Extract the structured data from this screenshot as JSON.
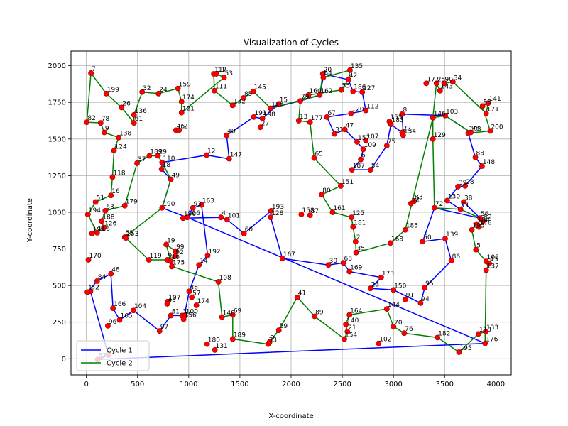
{
  "chart_data": {
    "type": "line",
    "title": "Visualization of Cycles",
    "xlabel": "X-coordinate",
    "ylabel": "Y-coordinate",
    "xlim": [
      -150,
      4150
    ],
    "ylim": [
      -110,
      2100
    ],
    "xticks": [
      0,
      500,
      1000,
      1500,
      2000,
      2500,
      3000,
      3500,
      4000
    ],
    "yticks": [
      0,
      250,
      500,
      750,
      1000,
      1250,
      1500,
      1750,
      2000
    ],
    "grid": true,
    "legend_position": "lower-left",
    "colors": {
      "cycle1": "#0000ff",
      "cycle2": "#008000",
      "point_fill": "#ff0000",
      "point_edge": "#8b0000"
    },
    "points": [
      {
        "id": "7",
        "x": 45,
        "y": 1950
      },
      {
        "id": "199",
        "x": 195,
        "y": 1810
      },
      {
        "id": "32",
        "x": 545,
        "y": 1820
      },
      {
        "id": "24",
        "x": 705,
        "y": 1810
      },
      {
        "id": "159",
        "x": 895,
        "y": 1845
      },
      {
        "id": "174",
        "x": 930,
        "y": 1755
      },
      {
        "id": "121",
        "x": 930,
        "y": 1680
      },
      {
        "id": "117",
        "x": 1245,
        "y": 1945
      },
      {
        "id": "11",
        "x": 1270,
        "y": 1945
      },
      {
        "id": "53",
        "x": 1345,
        "y": 1920
      },
      {
        "id": "111",
        "x": 1250,
        "y": 1830
      },
      {
        "id": "145",
        "x": 1630,
        "y": 1825
      },
      {
        "id": "85",
        "x": 1535,
        "y": 1780
      },
      {
        "id": "132",
        "x": 1430,
        "y": 1730
      },
      {
        "id": "15",
        "x": 1880,
        "y": 1740
      },
      {
        "id": "118",
        "x": 1800,
        "y": 1710
      },
      {
        "id": "79",
        "x": 2090,
        "y": 1760
      },
      {
        "id": "160",
        "x": 2170,
        "y": 1800
      },
      {
        "id": "162",
        "x": 2280,
        "y": 1800
      },
      {
        "id": "20",
        "x": 2310,
        "y": 1945
      },
      {
        "id": "64",
        "x": 2315,
        "y": 1920
      },
      {
        "id": "135",
        "x": 2575,
        "y": 1970
      },
      {
        "id": "42",
        "x": 2560,
        "y": 1905
      },
      {
        "id": "55",
        "x": 2490,
        "y": 1835
      },
      {
        "id": "186",
        "x": 2605,
        "y": 1825
      },
      {
        "id": "127",
        "x": 2695,
        "y": 1820
      },
      {
        "id": "26",
        "x": 345,
        "y": 1715
      },
      {
        "id": "136",
        "x": 465,
        "y": 1665
      },
      {
        "id": "61",
        "x": 465,
        "y": 1610
      },
      {
        "id": "82",
        "x": 5,
        "y": 1615
      },
      {
        "id": "78",
        "x": 140,
        "y": 1610
      },
      {
        "id": "9",
        "x": 175,
        "y": 1545
      },
      {
        "id": "138",
        "x": 315,
        "y": 1510
      },
      {
        "id": "46",
        "x": 875,
        "y": 1560
      },
      {
        "id": "72a",
        "label": "72",
        "x": 905,
        "y": 1560
      },
      {
        "id": "191",
        "x": 1635,
        "y": 1650
      },
      {
        "id": "198",
        "x": 1720,
        "y": 1640
      },
      {
        "id": "27",
        "x": 1700,
        "y": 1580
      },
      {
        "id": "40",
        "x": 1370,
        "y": 1525
      },
      {
        "id": "13",
        "x": 2075,
        "y": 1625
      },
      {
        "id": "177",
        "x": 2185,
        "y": 1615
      },
      {
        "id": "67",
        "x": 2350,
        "y": 1650
      },
      {
        "id": "120",
        "x": 2585,
        "y": 1675
      },
      {
        "id": "112",
        "x": 2730,
        "y": 1695
      },
      {
        "id": "31",
        "x": 2425,
        "y": 1535
      },
      {
        "id": "47",
        "x": 2525,
        "y": 1565
      },
      {
        "id": "8",
        "x": 3085,
        "y": 1670
      },
      {
        "id": "155",
        "x": 2960,
        "y": 1620
      },
      {
        "id": "183",
        "x": 2975,
        "y": 1600
      },
      {
        "id": "22",
        "x": 3085,
        "y": 1545
      },
      {
        "id": "134",
        "x": 3095,
        "y": 1525
      },
      {
        "id": "157",
        "x": 2645,
        "y": 1480
      },
      {
        "id": "107",
        "x": 2730,
        "y": 1490
      },
      {
        "id": "109",
        "x": 2705,
        "y": 1430
      },
      {
        "id": "75",
        "x": 2935,
        "y": 1455
      },
      {
        "id": "177b",
        "label": "177",
        "x": 3320,
        "y": 1880
      },
      {
        "id": "25",
        "x": 3420,
        "y": 1880
      },
      {
        "id": "143",
        "x": 3455,
        "y": 1830
      },
      {
        "id": "90",
        "x": 3495,
        "y": 1880
      },
      {
        "id": "34",
        "x": 3580,
        "y": 1890
      },
      {
        "id": "146",
        "x": 3385,
        "y": 1645
      },
      {
        "id": "103",
        "x": 3505,
        "y": 1660
      },
      {
        "id": "58",
        "x": 3870,
        "y": 1725
      },
      {
        "id": "141",
        "x": 3925,
        "y": 1745
      },
      {
        "id": "171",
        "x": 3905,
        "y": 1675
      },
      {
        "id": "200",
        "x": 3945,
        "y": 1555
      },
      {
        "id": "193b",
        "label": "193",
        "x": 3730,
        "y": 1540
      },
      {
        "id": "98",
        "x": 3755,
        "y": 1545
      },
      {
        "id": "129",
        "x": 3385,
        "y": 1500
      },
      {
        "id": "124",
        "x": 270,
        "y": 1420
      },
      {
        "id": "37",
        "x": 495,
        "y": 1335
      },
      {
        "id": "189a",
        "label": "189",
        "x": 615,
        "y": 1385
      },
      {
        "id": "29",
        "x": 700,
        "y": 1385
      },
      {
        "id": "110",
        "x": 740,
        "y": 1340
      },
      {
        "id": "18",
        "x": 735,
        "y": 1295
      },
      {
        "id": "49",
        "x": 825,
        "y": 1225
      },
      {
        "id": "12",
        "x": 1175,
        "y": 1390
      },
      {
        "id": "147",
        "x": 1395,
        "y": 1365
      },
      {
        "id": "65",
        "x": 2225,
        "y": 1370
      },
      {
        "id": "6",
        "x": 2680,
        "y": 1360
      },
      {
        "id": "187",
        "x": 2595,
        "y": 1290
      },
      {
        "id": "54",
        "x": 2775,
        "y": 1290
      },
      {
        "id": "88",
        "x": 3800,
        "y": 1375
      },
      {
        "id": "148",
        "x": 3865,
        "y": 1315
      },
      {
        "id": "118b",
        "label": "118",
        "x": 255,
        "y": 1240
      },
      {
        "id": "39",
        "x": 3630,
        "y": 1175
      },
      {
        "id": "28",
        "x": 3700,
        "y": 1180
      },
      {
        "id": "16",
        "x": 240,
        "y": 1115
      },
      {
        "id": "51",
        "x": 90,
        "y": 1070
      },
      {
        "id": "63",
        "x": 185,
        "y": 1010
      },
      {
        "id": "179",
        "x": 375,
        "y": 1045
      },
      {
        "id": "194",
        "x": 15,
        "y": 985
      },
      {
        "id": "190",
        "x": 740,
        "y": 1030
      },
      {
        "id": "93",
        "x": 1040,
        "y": 1030
      },
      {
        "id": "163",
        "x": 1125,
        "y": 1050
      },
      {
        "id": "106",
        "x": 985,
        "y": 965
      },
      {
        "id": "196",
        "x": 945,
        "y": 960
      },
      {
        "id": "4",
        "x": 1315,
        "y": 965
      },
      {
        "id": "101",
        "x": 1375,
        "y": 950
      },
      {
        "id": "193",
        "x": 1805,
        "y": 1010
      },
      {
        "id": "128",
        "x": 1800,
        "y": 965
      },
      {
        "id": "60",
        "x": 1540,
        "y": 855
      },
      {
        "id": "158",
        "x": 2100,
        "y": 985
      },
      {
        "id": "87",
        "x": 2185,
        "y": 980
      },
      {
        "id": "80",
        "x": 2300,
        "y": 1120
      },
      {
        "id": "151",
        "x": 2485,
        "y": 1180
      },
      {
        "id": "161",
        "x": 2405,
        "y": 1000
      },
      {
        "id": "125",
        "x": 2590,
        "y": 965
      },
      {
        "id": "181",
        "x": 2605,
        "y": 900
      },
      {
        "id": "62",
        "x": 3170,
        "y": 1060
      },
      {
        "id": "83",
        "x": 3200,
        "y": 1075
      },
      {
        "id": "72",
        "x": 3400,
        "y": 1030
      },
      {
        "id": "130",
        "x": 3525,
        "y": 1080
      },
      {
        "id": "38",
        "x": 3685,
        "y": 1070
      },
      {
        "id": "71",
        "x": 3655,
        "y": 1020
      },
      {
        "id": "56",
        "x": 3845,
        "y": 960
      },
      {
        "id": "52",
        "x": 3875,
        "y": 940
      },
      {
        "id": "178",
        "x": 3835,
        "y": 900
      },
      {
        "id": "184",
        "x": 3815,
        "y": 920
      },
      {
        "id": "195",
        "x": 3765,
        "y": 880
      },
      {
        "id": "188",
        "x": 150,
        "y": 940
      },
      {
        "id": "126",
        "x": 170,
        "y": 895
      },
      {
        "id": "116",
        "x": 105,
        "y": 860
      },
      {
        "id": "194b",
        "label": "194",
        "x": 55,
        "y": 855
      },
      {
        "id": "55b",
        "label": "55",
        "x": 375,
        "y": 830
      },
      {
        "id": "153",
        "x": 385,
        "y": 825
      },
      {
        "id": "185",
        "x": 3115,
        "y": 880
      },
      {
        "id": "168",
        "x": 2970,
        "y": 790
      },
      {
        "id": "2",
        "x": 2630,
        "y": 800
      },
      {
        "id": "35",
        "x": 2635,
        "y": 725
      },
      {
        "id": "50",
        "x": 3285,
        "y": 800
      },
      {
        "id": "139",
        "x": 3505,
        "y": 820
      },
      {
        "id": "5",
        "x": 3805,
        "y": 745
      },
      {
        "id": "19",
        "x": 780,
        "y": 780
      },
      {
        "id": "99",
        "x": 870,
        "y": 735
      },
      {
        "id": "119",
        "x": 610,
        "y": 675
      },
      {
        "id": "9b",
        "label": "9",
        "x": 790,
        "y": 675
      },
      {
        "id": "92",
        "x": 865,
        "y": 700
      },
      {
        "id": "10",
        "x": 825,
        "y": 665
      },
      {
        "id": "175",
        "x": 835,
        "y": 630
      },
      {
        "id": "192",
        "x": 1185,
        "y": 705
      },
      {
        "id": "14",
        "x": 1100,
        "y": 640
      },
      {
        "id": "167",
        "x": 1915,
        "y": 685
      },
      {
        "id": "30",
        "x": 2365,
        "y": 640
      },
      {
        "id": "68",
        "x": 2510,
        "y": 655
      },
      {
        "id": "169",
        "x": 2570,
        "y": 595
      },
      {
        "id": "86",
        "x": 3565,
        "y": 670
      },
      {
        "id": "105",
        "x": 3905,
        "y": 665
      },
      {
        "id": "43",
        "x": 3935,
        "y": 650
      },
      {
        "id": "137",
        "x": 3905,
        "y": 605
      },
      {
        "id": "170",
        "x": 20,
        "y": 675
      },
      {
        "id": "48",
        "x": 240,
        "y": 580
      },
      {
        "id": "84",
        "x": 105,
        "y": 530
      },
      {
        "id": "52b",
        "label": "52",
        "x": 40,
        "y": 460
      },
      {
        "id": "1",
        "x": 10,
        "y": 455
      },
      {
        "id": "108",
        "x": 1290,
        "y": 525
      },
      {
        "id": "36",
        "x": 1005,
        "y": 460
      },
      {
        "id": "57",
        "x": 1030,
        "y": 420
      },
      {
        "id": "174b",
        "label": "174",
        "x": 1075,
        "y": 365
      },
      {
        "id": "197",
        "x": 795,
        "y": 390
      },
      {
        "id": "45",
        "x": 790,
        "y": 375
      },
      {
        "id": "3",
        "x": 935,
        "y": 295
      },
      {
        "id": "100",
        "x": 965,
        "y": 295
      },
      {
        "id": "81",
        "x": 825,
        "y": 295
      },
      {
        "id": "156",
        "x": 950,
        "y": 270
      },
      {
        "id": "173",
        "x": 2880,
        "y": 555
      },
      {
        "id": "23",
        "x": 2775,
        "y": 480
      },
      {
        "id": "150",
        "x": 3000,
        "y": 470
      },
      {
        "id": "95",
        "x": 3305,
        "y": 485
      },
      {
        "id": "91",
        "x": 3115,
        "y": 405
      },
      {
        "id": "94",
        "x": 3265,
        "y": 380
      },
      {
        "id": "41",
        "x": 2060,
        "y": 420
      },
      {
        "id": "166",
        "x": 260,
        "y": 345
      },
      {
        "id": "165",
        "x": 325,
        "y": 265
      },
      {
        "id": "104",
        "x": 460,
        "y": 330
      },
      {
        "id": "96",
        "x": 210,
        "y": 225
      },
      {
        "id": "97",
        "x": 715,
        "y": 190
      },
      {
        "id": "144",
        "x": 2935,
        "y": 340
      },
      {
        "id": "164",
        "x": 2570,
        "y": 300
      },
      {
        "id": "89",
        "x": 2230,
        "y": 290
      },
      {
        "id": "140",
        "x": 1325,
        "y": 285
      },
      {
        "id": "69",
        "x": 1430,
        "y": 300
      },
      {
        "id": "140b",
        "label": "140",
        "x": 2535,
        "y": 235
      },
      {
        "id": "21",
        "x": 2550,
        "y": 185
      },
      {
        "id": "70",
        "x": 3000,
        "y": 220
      },
      {
        "id": "76",
        "x": 3105,
        "y": 175
      },
      {
        "id": "59",
        "x": 1880,
        "y": 195
      },
      {
        "id": "154",
        "x": 2520,
        "y": 135
      },
      {
        "id": "102",
        "x": 2855,
        "y": 105
      },
      {
        "id": "182",
        "x": 3430,
        "y": 145
      },
      {
        "id": "113",
        "x": 3830,
        "y": 170
      },
      {
        "id": "133",
        "x": 3900,
        "y": 185
      },
      {
        "id": "176",
        "x": 3895,
        "y": 105
      },
      {
        "id": "195b",
        "label": "195",
        "x": 3640,
        "y": 45
      },
      {
        "id": "180",
        "x": 1180,
        "y": 100
      },
      {
        "id": "131",
        "x": 1255,
        "y": 60
      },
      {
        "id": "189",
        "x": 1430,
        "y": 135
      },
      {
        "id": "33",
        "x": 1775,
        "y": 100
      },
      {
        "id": "3b",
        "label": "3",
        "x": 1790,
        "y": 115
      },
      {
        "id": "87b",
        "label": "87",
        "x": 110,
        "y": -5
      },
      {
        "id": "76b",
        "label": "76",
        "x": 215,
        "y": 25
      }
    ],
    "series": [
      {
        "name": "Cycle 1",
        "color": "#0000ff",
        "path": [
          "1",
          "84",
          "48",
          "166",
          "165",
          "104",
          "97",
          "81",
          "100",
          "156",
          "36",
          "14",
          "192",
          "163",
          "93",
          "106",
          "190",
          "49",
          "18",
          "110",
          "12",
          "147",
          "40",
          "191",
          "198",
          "15",
          "118",
          "79",
          "162",
          "64",
          "20",
          "42",
          "186",
          "127",
          "112",
          "120",
          "67",
          "31",
          "47",
          "157",
          "109",
          "6",
          "187",
          "54",
          "75",
          "183",
          "22",
          "134",
          "8",
          "103",
          "98",
          "193b",
          "88",
          "148",
          "28",
          "39",
          "130",
          "71",
          "38",
          "56",
          "72",
          "50",
          "139",
          "86",
          "95",
          "94",
          "150",
          "23",
          "173",
          "169",
          "68",
          "30",
          "167",
          "128",
          "193",
          "60",
          "101",
          "4",
          "196",
          "106",
          "176",
          "87b",
          "76b",
          "52b",
          "1"
        ]
      },
      {
        "name": "Cycle 2",
        "color": "#008000",
        "path": [
          "7",
          "82",
          "78",
          "9",
          "138",
          "124",
          "118b",
          "16",
          "51",
          "194",
          "116",
          "194b",
          "126",
          "188",
          "63",
          "179",
          "37",
          "189a",
          "29",
          "110",
          "49",
          "190",
          "55b",
          "153",
          "119",
          "9b",
          "92",
          "99",
          "19",
          "10",
          "175",
          "108",
          "140",
          "69",
          "189",
          "33",
          "3b",
          "59",
          "41",
          "89",
          "154",
          "21",
          "140b",
          "164",
          "144",
          "70",
          "76",
          "182",
          "195b",
          "113",
          "133",
          "176",
          "137",
          "43",
          "105",
          "5",
          "195",
          "184",
          "178",
          "52",
          "56",
          "71",
          "72",
          "129",
          "146",
          "25",
          "143",
          "90",
          "34",
          "171",
          "141",
          "58",
          "200",
          "193b",
          "98",
          "103",
          "146",
          "185",
          "168",
          "35",
          "2",
          "181",
          "125",
          "161",
          "80",
          "151",
          "65",
          "177",
          "13",
          "79",
          "160",
          "55",
          "42",
          "135",
          "64",
          "20",
          "162",
          "118",
          "145",
          "85",
          "132",
          "111",
          "117",
          "11",
          "53",
          "121",
          "174",
          "159",
          "24",
          "32",
          "136",
          "61",
          "26",
          "199",
          "7"
        ]
      }
    ],
    "legend": [
      {
        "name": "Cycle 1",
        "color": "#0000ff"
      },
      {
        "name": "Cycle 2",
        "color": "#008000"
      }
    ]
  }
}
